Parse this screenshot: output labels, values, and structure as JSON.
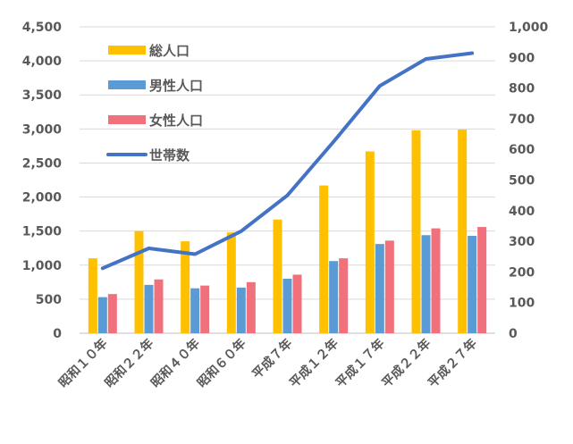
{
  "chart_data": {
    "type": "bar+line",
    "title": "",
    "categories": [
      "昭和１０年",
      "昭和２２年",
      "昭和４０年",
      "昭和６０年",
      "平成７年",
      "平成１２年",
      "平成１７年",
      "平成２２年",
      "平成２７年"
    ],
    "series": [
      {
        "name": "総人口",
        "type": "bar",
        "axis": "left",
        "color": "#FFC000",
        "values": [
          1100,
          1500,
          1350,
          1480,
          1670,
          2170,
          2670,
          2980,
          2990
        ]
      },
      {
        "name": "男性人口",
        "type": "bar",
        "axis": "left",
        "color": "#5B9BD5",
        "values": [
          530,
          710,
          660,
          670,
          800,
          1060,
          1310,
          1440,
          1430
        ]
      },
      {
        "name": "女性人口",
        "type": "bar",
        "axis": "left",
        "color": "#F0707B",
        "values": [
          575,
          790,
          700,
          750,
          860,
          1100,
          1360,
          1540,
          1560
        ]
      },
      {
        "name": "世帯数",
        "type": "line",
        "axis": "right",
        "color": "#4472C4",
        "values": [
          212,
          277,
          258,
          333,
          450,
          625,
          807,
          895,
          914
        ]
      }
    ],
    "y_left": {
      "min": 0,
      "max": 4500,
      "step": 500,
      "tick_labels": [
        "0",
        "500",
        "1,000",
        "1,500",
        "2,000",
        "2,500",
        "3,000",
        "3,500",
        "4,000",
        "4,500"
      ]
    },
    "y_right": {
      "min": 0,
      "max": 1000,
      "step": 100,
      "tick_labels": [
        "0",
        "100",
        "200",
        "300",
        "400",
        "500",
        "600",
        "700",
        "800",
        "900",
        "1,000"
      ]
    },
    "grid": true,
    "legend_position": "top-left",
    "gridline_color": "#D9D9D9",
    "label_color": "#595959"
  }
}
